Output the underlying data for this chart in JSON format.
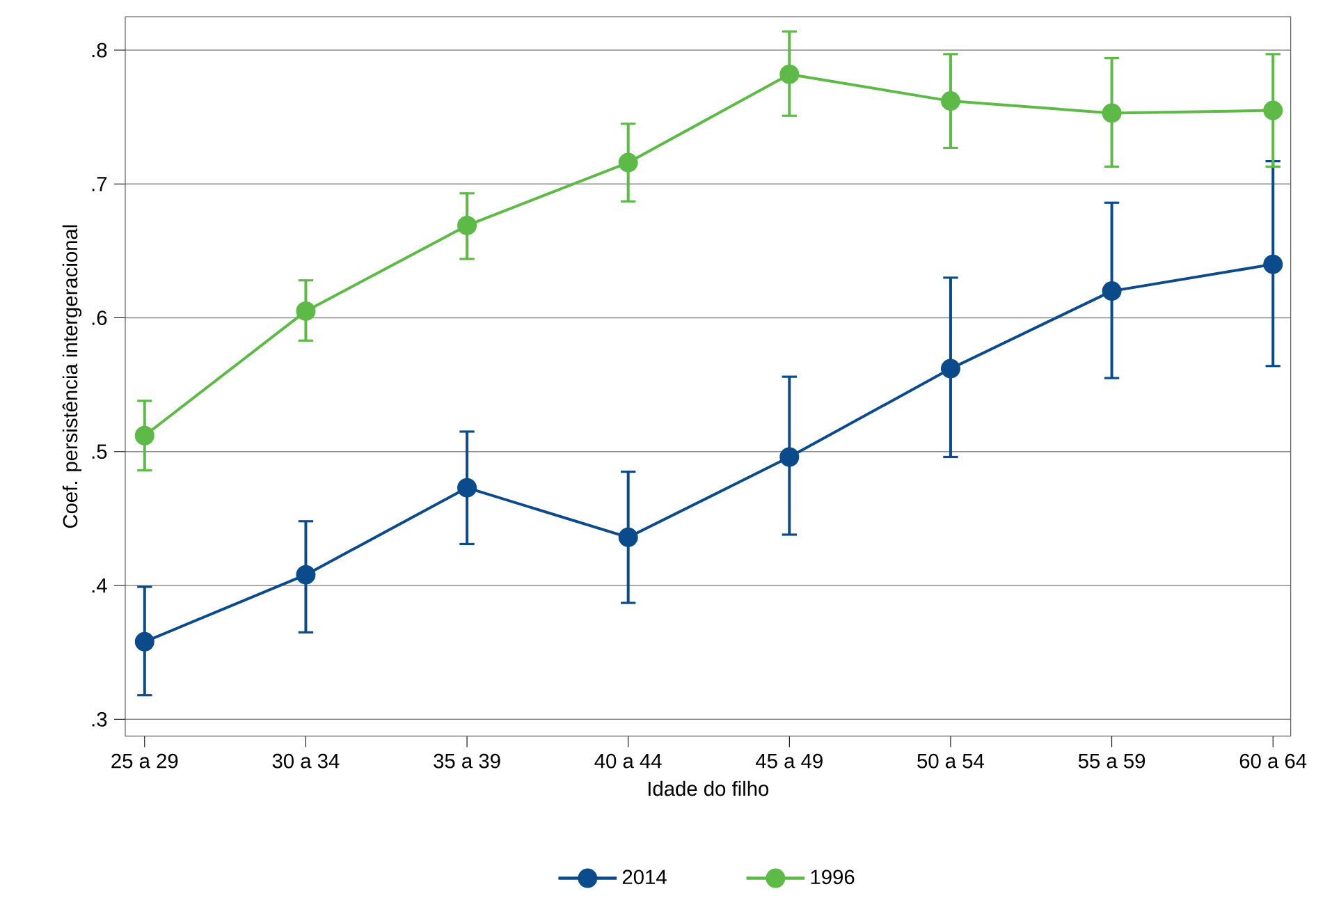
{
  "chart_data": {
    "type": "line",
    "xlabel": "Idade do filho",
    "ylabel": "Coef. persistência intergeracional",
    "categories": [
      "25 a 29",
      "30 a 34",
      "35 a 39",
      "40 a 44",
      "45 a 49",
      "50 a 54",
      "55 a 59",
      "60 a 64"
    ],
    "series": [
      {
        "name": "2014",
        "color": "#0b4a8b",
        "values": [
          0.358,
          0.408,
          0.473,
          0.436,
          0.496,
          0.562,
          0.62,
          0.64
        ],
        "errors": [
          [
            0.318,
            0.399
          ],
          [
            0.365,
            0.448
          ],
          [
            0.431,
            0.515
          ],
          [
            0.387,
            0.485
          ],
          [
            0.438,
            0.556
          ],
          [
            0.496,
            0.63
          ],
          [
            0.555,
            0.686
          ],
          [
            0.564,
            0.717
          ]
        ]
      },
      {
        "name": "1996",
        "color": "#5dba47",
        "values": [
          0.512,
          0.605,
          0.669,
          0.716,
          0.782,
          0.762,
          0.753,
          0.755
        ],
        "errors": [
          [
            0.486,
            0.538
          ],
          [
            0.583,
            0.628
          ],
          [
            0.644,
            0.693
          ],
          [
            0.687,
            0.745
          ],
          [
            0.751,
            0.814
          ],
          [
            0.727,
            0.797
          ],
          [
            0.713,
            0.794
          ],
          [
            0.713,
            0.797
          ]
        ]
      }
    ],
    "ylim": [
      0.2875,
      0.825
    ],
    "yticks": [
      {
        "value": 0.3,
        "label": ".3"
      },
      {
        "value": 0.4,
        "label": ".4"
      },
      {
        "value": 0.5,
        "label": ".5"
      },
      {
        "value": 0.6,
        "label": ".6"
      },
      {
        "value": 0.7,
        "label": ".7"
      },
      {
        "value": 0.8,
        "label": ".8"
      }
    ],
    "grid": "y",
    "legend": "bottom",
    "marker": "circle",
    "line_style": "solid"
  }
}
